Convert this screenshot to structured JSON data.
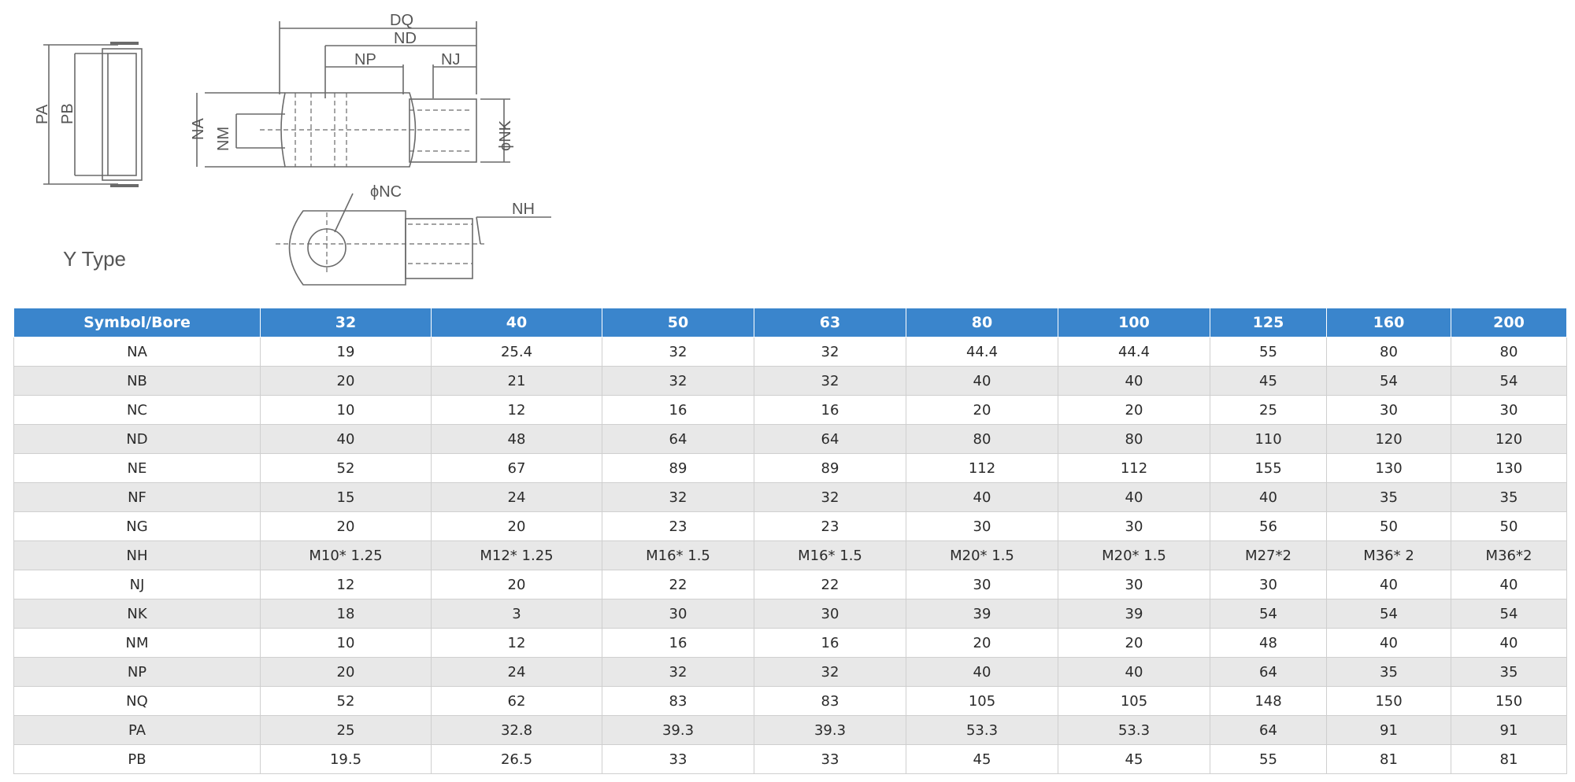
{
  "drawing": {
    "type_label": "Y Type",
    "dim_labels": {
      "pa": "PA",
      "pb": "PB",
      "dq": "DQ",
      "nd": "ND",
      "np": "NP",
      "nj": "NJ",
      "na": "NA",
      "nm": "NM",
      "nk": "ϕNK",
      "nc": "ϕNC",
      "nh": "NH"
    }
  },
  "table": {
    "header": [
      "Symbol/Bore",
      "32",
      "40",
      "50",
      "63",
      "80",
      "100",
      "125",
      "160",
      "200"
    ],
    "rows": [
      [
        "NA",
        "19",
        "25.4",
        "32",
        "32",
        "44.4",
        "44.4",
        "55",
        "80",
        "80"
      ],
      [
        "NB",
        "20",
        "21",
        "32",
        "32",
        "40",
        "40",
        "45",
        "54",
        "54"
      ],
      [
        "NC",
        "10",
        "12",
        "16",
        "16",
        "20",
        "20",
        "25",
        "30",
        "30"
      ],
      [
        "ND",
        "40",
        "48",
        "64",
        "64",
        "80",
        "80",
        "110",
        "120",
        "120"
      ],
      [
        "NE",
        "52",
        "67",
        "89",
        "89",
        "112",
        "112",
        "155",
        "130",
        "130"
      ],
      [
        "NF",
        "15",
        "24",
        "32",
        "32",
        "40",
        "40",
        "40",
        "35",
        "35"
      ],
      [
        "NG",
        "20",
        "20",
        "23",
        "23",
        "30",
        "30",
        "56",
        "50",
        "50"
      ],
      [
        "NH",
        "M10* 1.25",
        "M12* 1.25",
        "M16* 1.5",
        "M16* 1.5",
        "M20* 1.5",
        "M20* 1.5",
        "M27*2",
        "M36* 2",
        "M36*2"
      ],
      [
        "NJ",
        "12",
        "20",
        "22",
        "22",
        "30",
        "30",
        "30",
        "40",
        "40"
      ],
      [
        "NK",
        "18",
        "3",
        "30",
        "30",
        "39",
        "39",
        "54",
        "54",
        "54"
      ],
      [
        "NM",
        "10",
        "12",
        "16",
        "16",
        "20",
        "20",
        "48",
        "40",
        "40"
      ],
      [
        "NP",
        "20",
        "24",
        "32",
        "32",
        "40",
        "40",
        "64",
        "35",
        "35"
      ],
      [
        "NQ",
        "52",
        "62",
        "83",
        "83",
        "105",
        "105",
        "148",
        "150",
        "150"
      ],
      [
        "PA",
        "25",
        "32.8",
        "39.3",
        "39.3",
        "53.3",
        "53.3",
        "64",
        "91",
        "91"
      ],
      [
        "PB",
        "19.5",
        "26.5",
        "33",
        "33",
        "45",
        "45",
        "55",
        "81",
        "81"
      ]
    ]
  }
}
